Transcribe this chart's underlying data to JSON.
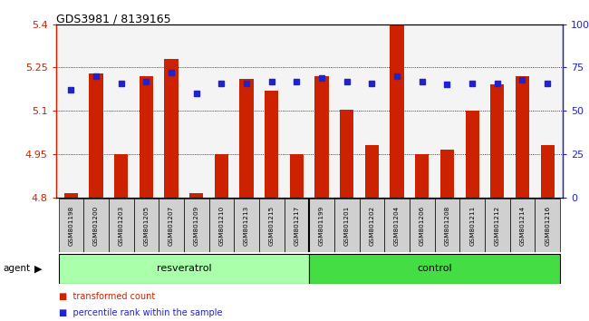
{
  "title": "GDS3981 / 8139165",
  "samples": [
    "GSM801198",
    "GSM801200",
    "GSM801203",
    "GSM801205",
    "GSM801207",
    "GSM801209",
    "GSM801210",
    "GSM801213",
    "GSM801215",
    "GSM801217",
    "GSM801199",
    "GSM801201",
    "GSM801202",
    "GSM801204",
    "GSM801206",
    "GSM801208",
    "GSM801211",
    "GSM801212",
    "GSM801214",
    "GSM801216"
  ],
  "transformed_count": [
    4.815,
    5.23,
    4.95,
    5.22,
    5.28,
    4.815,
    4.95,
    5.21,
    5.17,
    4.95,
    5.22,
    5.105,
    4.98,
    5.395,
    4.95,
    4.965,
    5.1,
    5.19,
    5.22,
    4.98
  ],
  "percentile_rank": [
    62,
    70,
    66,
    67,
    72,
    60,
    66,
    66,
    67,
    67,
    69,
    67,
    66,
    70,
    67,
    65,
    66,
    66,
    68,
    66
  ],
  "group": [
    "resveratrol",
    "resveratrol",
    "resveratrol",
    "resveratrol",
    "resveratrol",
    "resveratrol",
    "resveratrol",
    "resveratrol",
    "resveratrol",
    "resveratrol",
    "control",
    "control",
    "control",
    "control",
    "control",
    "control",
    "control",
    "control",
    "control",
    "control"
  ],
  "ylim_left": [
    4.8,
    5.4
  ],
  "ylim_right": [
    0,
    100
  ],
  "yticks_left": [
    4.8,
    4.95,
    5.1,
    5.25,
    5.4
  ],
  "ytick_labels_left": [
    "4.8",
    "4.95",
    "5.1",
    "5.25",
    "5.4"
  ],
  "yticks_right": [
    0,
    25,
    50,
    75,
    100
  ],
  "ytick_labels_right": [
    "0",
    "25",
    "50",
    "75",
    "100%"
  ],
  "bar_color": "#cc2200",
  "dot_color": "#2222cc",
  "resveratrol_color": "#aaffaa",
  "control_color": "#44dd44",
  "agent_label": "agent",
  "legend_bar": "transformed count",
  "legend_dot": "percentile rank within the sample",
  "bar_width": 0.55,
  "n_resveratrol": 10,
  "n_control": 10
}
